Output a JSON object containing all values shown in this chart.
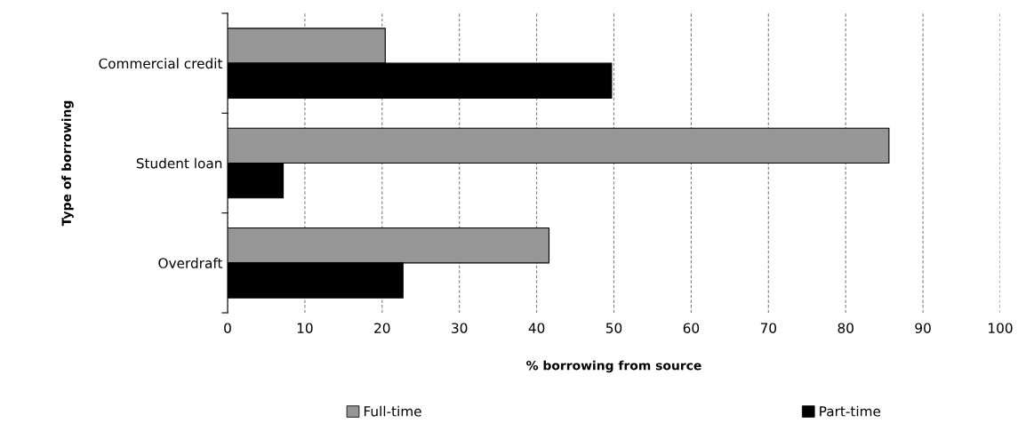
{
  "chart_data": {
    "type": "bar",
    "orientation": "horizontal",
    "xlabel": "% borrowing from source",
    "ylabel": "Type of borrowing",
    "categories": [
      "Commercial credit",
      "Student loan",
      "Overdraft"
    ],
    "series": [
      {
        "name": "Full-time",
        "color": "#969696",
        "values": [
          20.4,
          85.6,
          41.6
        ]
      },
      {
        "name": "Part-time",
        "color": "#000000",
        "values": [
          49.7,
          7.2,
          22.7
        ]
      }
    ],
    "xlim": [
      0,
      100
    ],
    "xticks": [
      0,
      10,
      20,
      30,
      40,
      50,
      60,
      70,
      80,
      90,
      100
    ],
    "grid": "x",
    "legend": "bottom"
  }
}
